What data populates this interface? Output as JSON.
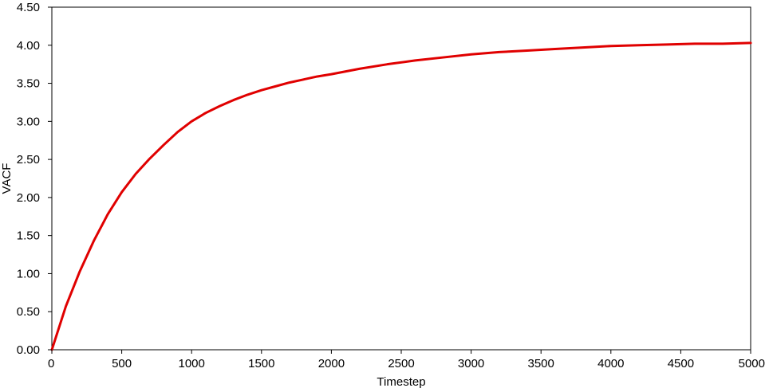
{
  "chart_data": {
    "type": "line",
    "title": "",
    "xlabel": "Timestep",
    "ylabel": "VACF",
    "xlim": [
      0,
      5000
    ],
    "ylim": [
      0,
      4.5
    ],
    "x_ticks": [
      "0",
      "500",
      "1000",
      "1500",
      "2000",
      "2500",
      "3000",
      "3500",
      "4000",
      "4500",
      "5000"
    ],
    "y_ticks": [
      "0.00",
      "0.50",
      "1.00",
      "1.50",
      "2.00",
      "2.50",
      "3.00",
      "3.50",
      "4.00",
      "4.50"
    ],
    "grid": false,
    "legend": "none",
    "series": [
      {
        "color": "#e00000",
        "x": [
          0,
          100,
          200,
          300,
          400,
          500,
          600,
          700,
          800,
          900,
          1000,
          1100,
          1200,
          1300,
          1400,
          1500,
          1600,
          1700,
          1800,
          1900,
          2000,
          2200,
          2400,
          2600,
          2800,
          3000,
          3200,
          3400,
          3600,
          3800,
          4000,
          4200,
          4400,
          4600,
          4800,
          5000
        ],
        "y": [
          0.0,
          0.57,
          1.03,
          1.43,
          1.78,
          2.07,
          2.31,
          2.51,
          2.69,
          2.86,
          3.0,
          3.11,
          3.2,
          3.28,
          3.35,
          3.41,
          3.46,
          3.51,
          3.55,
          3.59,
          3.62,
          3.69,
          3.75,
          3.8,
          3.84,
          3.88,
          3.91,
          3.93,
          3.95,
          3.97,
          3.99,
          4.0,
          4.01,
          4.02,
          4.02,
          4.03
        ]
      }
    ]
  }
}
